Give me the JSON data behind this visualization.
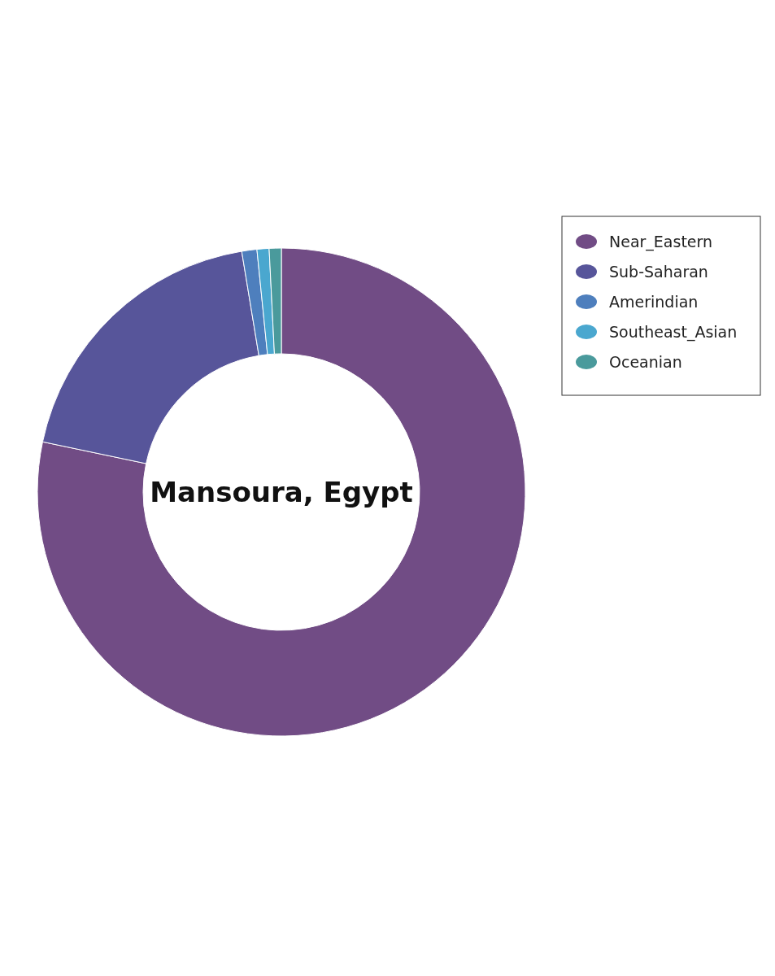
{
  "chart_data": {
    "type": "donut",
    "categories": [
      "Near_Eastern",
      "Sub-Saharan",
      "Amerindian",
      "Southeast_Asian",
      "Oceanian"
    ],
    "values": [
      78.3,
      19.1,
      1.0,
      0.8,
      0.8
    ],
    "colors": [
      "#714c85",
      "#57559a",
      "#4e7fbd",
      "#4aa7cf",
      "#4a9a9c"
    ],
    "annotations": [
      "Mansoura, Egypt"
    ],
    "legend": "top right"
  }
}
